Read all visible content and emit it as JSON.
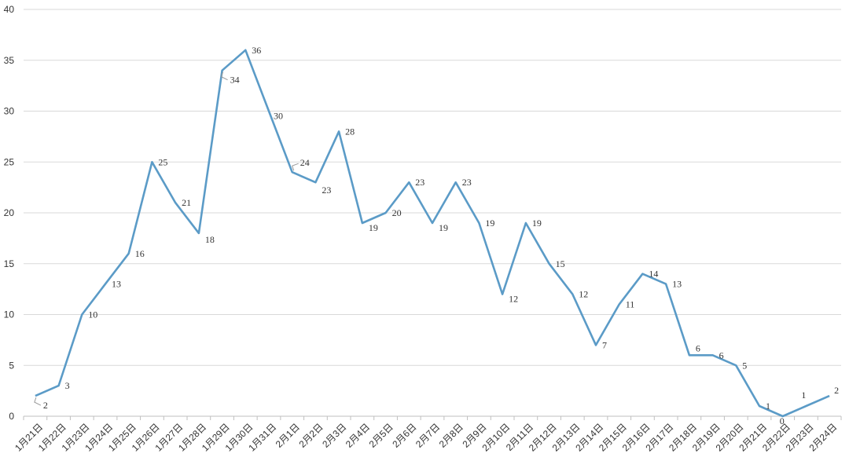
{
  "chart_data": {
    "type": "line",
    "title": "",
    "xlabel": "",
    "ylabel": "",
    "ylim": [
      0,
      40
    ],
    "yticks": [
      0,
      5,
      10,
      15,
      20,
      25,
      30,
      35,
      40
    ],
    "grid": true,
    "legend": "none",
    "categories": [
      "1月21日",
      "1月22日",
      "1月23日",
      "1月24日",
      "1月25日",
      "1月26日",
      "1月27日",
      "1月28日",
      "1月29日",
      "1月30日",
      "1月31日",
      "2月1日",
      "2月2日",
      "2月3日",
      "2月4日",
      "2月5日",
      "2月6日",
      "2月7日",
      "2月8日",
      "2月9日",
      "2月10日",
      "2月11日",
      "2月12日",
      "2月13日",
      "2月14日",
      "2月15日",
      "2月16日",
      "2月17日",
      "2月18日",
      "2月19日",
      "2月20日",
      "2月21日",
      "2月22日",
      "2月23日",
      "2月24日"
    ],
    "series": [
      {
        "color": "#5b9bc7",
        "values": [
          2,
          3,
          10,
          13,
          16,
          25,
          21,
          18,
          34,
          36,
          30,
          24,
          23,
          28,
          19,
          20,
          23,
          19,
          23,
          19,
          12,
          19,
          15,
          12,
          7,
          11,
          14,
          13,
          6,
          6,
          5,
          1,
          0,
          1,
          2
        ]
      }
    ]
  }
}
